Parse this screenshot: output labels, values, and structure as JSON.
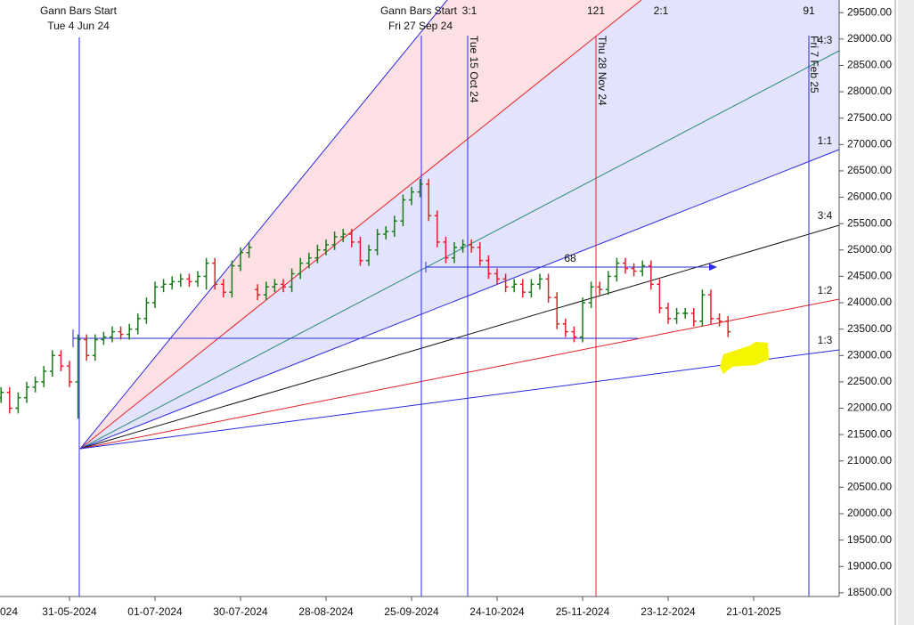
{
  "chart_data": {
    "type": "ohlc",
    "categories": [
      "024",
      null,
      null,
      null,
      null,
      null,
      null,
      null,
      null,
      null,
      "31-05-2024",
      null,
      null,
      null,
      null,
      null,
      null,
      null,
      null,
      null,
      "01-07-2024",
      null,
      null,
      null,
      null,
      null,
      null,
      null,
      null,
      null,
      "30-07-2024",
      null,
      null,
      null,
      null,
      null,
      null,
      null,
      null,
      null,
      "28-08-2024",
      null,
      null,
      null,
      null,
      null,
      null,
      null,
      null,
      null,
      "25-09-2024",
      null,
      null,
      null,
      null,
      null,
      null,
      null,
      null,
      null,
      "24-10-2024",
      null,
      null,
      null,
      null,
      null,
      null,
      null,
      null,
      null,
      "25-11-2024",
      null,
      null,
      null,
      null,
      null,
      null,
      null,
      null,
      null,
      "23-12-2024",
      null,
      null,
      null,
      null,
      null,
      null,
      null,
      null,
      null,
      "21-01-2025",
      null,
      null,
      null,
      null,
      null,
      null,
      null,
      null,
      null
    ],
    "open": [
      null,
      null,
      22200,
      22300,
      22000,
      22200,
      22400,
      22500,
      22700,
      23000,
      22800,
      22500,
      23300,
      23000,
      23300,
      23350,
      23450,
      23400,
      23500,
      23700,
      24000,
      24300,
      24350,
      24400,
      24450,
      24400,
      24500,
      24750,
      24350,
      24200,
      24700,
      24950,
      24250,
      24150,
      24300,
      24350,
      24300,
      24550,
      24750,
      24850,
      25000,
      25100,
      25250,
      25300,
      25150,
      24800,
      25000,
      25300,
      25350,
      25550,
      25950,
      26100,
      26250,
      25650,
      25150,
      24850,
      25050,
      25100,
      25050,
      24800,
      24550,
      24450,
      24300,
      24350,
      24200,
      24350,
      24450,
      24100,
      23600,
      23450,
      23350,
      24000,
      24300,
      24250,
      24500,
      24750,
      24650,
      24600,
      24700,
      24350,
      23900,
      23700,
      23800,
      23800,
      23650,
      24150,
      23700,
      23650,
      null,
      null,
      null,
      null,
      null,
      null,
      null,
      null,
      null,
      null,
      null,
      null
    ],
    "high": [
      null,
      null,
      22400,
      22400,
      22300,
      22500,
      22600,
      22800,
      23100,
      23100,
      22900,
      23400,
      23400,
      23400,
      23450,
      23550,
      23550,
      23600,
      23800,
      24100,
      24400,
      24450,
      24500,
      24550,
      24550,
      24600,
      24850,
      24850,
      24450,
      24800,
      25050,
      25150,
      24350,
      24400,
      24450,
      24450,
      24650,
      24850,
      24950,
      25100,
      25200,
      25350,
      25400,
      25400,
      25250,
      25100,
      25400,
      25450,
      25650,
      26050,
      26200,
      26350,
      26350,
      25750,
      25250,
      25150,
      25200,
      25200,
      25150,
      24900,
      24650,
      24550,
      24450,
      24450,
      24450,
      24550,
      24550,
      24200,
      23700,
      23550,
      24100,
      24400,
      24400,
      24600,
      24850,
      24850,
      24750,
      24800,
      24800,
      24450,
      24000,
      23900,
      23900,
      23900,
      24250,
      24250,
      23800,
      23750,
      null,
      null,
      null,
      null,
      null,
      null,
      null,
      null,
      null,
      null,
      null,
      null
    ],
    "low": [
      null,
      null,
      22100,
      21900,
      21900,
      22100,
      22300,
      22400,
      22600,
      22700,
      22400,
      21800,
      22900,
      22900,
      23200,
      23250,
      23300,
      23300,
      23400,
      23600,
      23900,
      24200,
      24250,
      24300,
      24300,
      24300,
      24250,
      24250,
      24100,
      24100,
      24600,
      24850,
      24050,
      24050,
      24200,
      24200,
      24200,
      24450,
      24650,
      24750,
      24900,
      25000,
      25150,
      25050,
      24700,
      24700,
      24900,
      25200,
      25250,
      25450,
      25850,
      26000,
      25550,
      25050,
      24750,
      24750,
      24950,
      24950,
      24700,
      24450,
      24350,
      24200,
      24200,
      24100,
      24100,
      24250,
      24000,
      23500,
      23350,
      23250,
      23250,
      23900,
      24150,
      24150,
      24400,
      24550,
      24500,
      24500,
      24250,
      23800,
      23600,
      23600,
      23700,
      23550,
      23550,
      23600,
      23550,
      23350,
      null,
      null,
      null,
      null,
      null,
      null,
      null,
      null,
      null,
      null,
      null,
      null
    ],
    "close": [
      null,
      null,
      22300,
      22000,
      22200,
      22400,
      22500,
      22700,
      23000,
      22800,
      22500,
      23300,
      23000,
      23300,
      23350,
      23450,
      23400,
      23500,
      23700,
      24000,
      24300,
      24350,
      24400,
      24450,
      24400,
      24500,
      24750,
      24350,
      24200,
      24700,
      24950,
      25050,
      24150,
      24300,
      24350,
      24300,
      24550,
      24750,
      24850,
      25000,
      25100,
      25250,
      25300,
      25150,
      24800,
      25000,
      25300,
      25350,
      25550,
      25950,
      26100,
      26250,
      25650,
      25150,
      24850,
      25050,
      25100,
      25050,
      24800,
      24550,
      24450,
      24300,
      24350,
      24200,
      24350,
      24450,
      24100,
      23600,
      23450,
      23350,
      24000,
      24300,
      24250,
      24500,
      24750,
      24650,
      24600,
      24700,
      24350,
      23900,
      23700,
      23800,
      23800,
      23650,
      24150,
      23700,
      23650,
      23450,
      null,
      null,
      null,
      null,
      null,
      null,
      null,
      null,
      null,
      null,
      null,
      null
    ],
    "up_color": "#1a7a1a",
    "down_color": "#e0202a",
    "ylim": [
      18430,
      29740
    ],
    "yticks": [
      {
        "value": 18500,
        "label": "18500.00"
      },
      {
        "value": 19000,
        "label": "19000.00"
      },
      {
        "value": 19500,
        "label": "19500.00"
      },
      {
        "value": 20000,
        "label": "20000.00"
      },
      {
        "value": 20500,
        "label": "20500.00"
      },
      {
        "value": 21000,
        "label": "21000.00"
      },
      {
        "value": 21500,
        "label": "21500.00"
      },
      {
        "value": 22000,
        "label": "22000.00"
      },
      {
        "value": 22500,
        "label": "22500.00"
      },
      {
        "value": 23000,
        "label": "23000.00"
      },
      {
        "value": 23500,
        "label": "23500.00"
      },
      {
        "value": 24000,
        "label": "24000.00"
      },
      {
        "value": 24500,
        "label": "24500.00"
      },
      {
        "value": 25000,
        "label": "25000.00"
      },
      {
        "value": 25500,
        "label": "25500.00"
      },
      {
        "value": 26000,
        "label": "26000.00"
      },
      {
        "value": 26500,
        "label": "26500.00"
      },
      {
        "value": 27000,
        "label": "27000.00"
      },
      {
        "value": 27500,
        "label": "27500.00"
      },
      {
        "value": 28000,
        "label": "28000.00"
      },
      {
        "value": 28500,
        "label": "28500.00"
      },
      {
        "value": 29000,
        "label": "29000.00"
      },
      {
        "value": 29500,
        "label": "29500.00"
      }
    ],
    "annotations": [
      "Gann Bars Start",
      "Tue 4 Jun 24",
      "Gann Bars Start",
      "Fri 27 Sep 24",
      "Tue 15 Oct 24",
      "Thu 28 Nov 24",
      "Fri 7 Feb 25",
      "121",
      "91",
      "68"
    ],
    "fan_labels": [
      "3:1",
      "2:1",
      "4:3",
      "1:1",
      "3:4",
      "1:2",
      "1:3"
    ]
  }
}
